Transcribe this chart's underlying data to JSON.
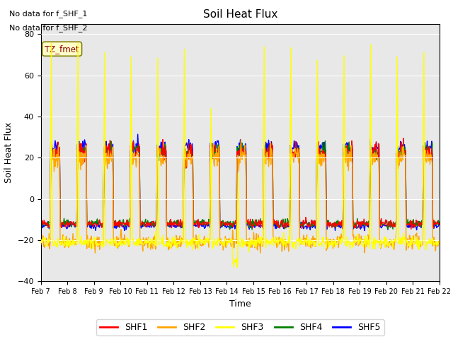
{
  "title": "Soil Heat Flux",
  "xlabel": "Time",
  "ylabel": "Soil Heat Flux",
  "ylim": [
    -40,
    85
  ],
  "yticks": [
    -40,
    -20,
    0,
    20,
    40,
    60,
    80
  ],
  "n_days": 15,
  "xtick_labels": [
    "Feb 7",
    "Feb 8",
    "Feb 9",
    "Feb 10",
    "Feb 11",
    "Feb 12",
    "Feb 13",
    "Feb 14",
    "Feb 15",
    "Feb 16",
    "Feb 17",
    "Feb 18",
    "Feb 19",
    "Feb 20",
    "Feb 21",
    "Feb 22"
  ],
  "plot_bg": "#e8e8e8",
  "fig_bg": "#ffffff",
  "annotation1": "No data for f_SHF_1",
  "annotation2": "No data for f_SHF_2",
  "box_label": "TZ_fmet",
  "series_colors": [
    "red",
    "orange",
    "yellow",
    "green",
    "blue"
  ],
  "series_labels": [
    "SHF1",
    "SHF2",
    "SHF3",
    "SHF4",
    "SHF5"
  ]
}
